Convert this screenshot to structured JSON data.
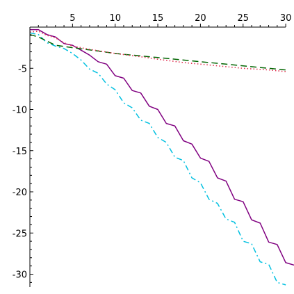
{
  "chart_data": {
    "type": "line",
    "title": "",
    "xlabel": "",
    "ylabel": "",
    "xlim": [
      0,
      30
    ],
    "ylim": [
      -31,
      0
    ],
    "grid": false,
    "x_major_ticks": [
      5,
      10,
      15,
      20,
      25,
      30
    ],
    "y_major_ticks": [
      -5,
      -10,
      -15,
      -20,
      -25,
      -30
    ],
    "x_tick_labels": [
      "5",
      "10",
      "15",
      "20",
      "25",
      "30"
    ],
    "y_tick_labels": [
      "-5",
      "-10",
      "-15",
      "-20",
      "-25",
      "-30"
    ],
    "series": [
      {
        "color": "#800080",
        "dash": "solid",
        "points": [
          [
            0,
            -0.3
          ],
          [
            1,
            -0.3
          ],
          [
            2,
            -0.9
          ],
          [
            3,
            -1.2
          ],
          [
            4,
            -2.0
          ],
          [
            5,
            -2.2
          ],
          [
            6,
            -2.8
          ],
          [
            7,
            -3.4
          ],
          [
            8,
            -4.2
          ],
          [
            9,
            -4.5
          ],
          [
            10,
            -5.9
          ],
          [
            11,
            -6.2
          ],
          [
            12,
            -7.7
          ],
          [
            13,
            -8.0
          ],
          [
            14,
            -9.6
          ],
          [
            15,
            -10.0
          ],
          [
            16,
            -11.7
          ],
          [
            17,
            -12.0
          ],
          [
            18,
            -13.8
          ],
          [
            19,
            -14.2
          ],
          [
            20,
            -15.9
          ],
          [
            21,
            -16.3
          ],
          [
            22,
            -18.3
          ],
          [
            23,
            -18.7
          ],
          [
            24,
            -20.9
          ],
          [
            25,
            -21.2
          ],
          [
            26,
            -23.4
          ],
          [
            27,
            -23.8
          ],
          [
            28,
            -26.1
          ],
          [
            29,
            -26.4
          ],
          [
            30,
            -28.6
          ],
          [
            31,
            -28.9
          ]
        ]
      },
      {
        "color": "#00c0e0",
        "dash": "dashdot",
        "points": [
          [
            0,
            -0.7
          ],
          [
            1,
            -0.9
          ],
          [
            2,
            -1.9
          ],
          [
            3,
            -2.3
          ],
          [
            4,
            -2.6
          ],
          [
            5,
            -3.2
          ],
          [
            6,
            -4.0
          ],
          [
            7,
            -5.1
          ],
          [
            8,
            -5.6
          ],
          [
            9,
            -6.9
          ],
          [
            10,
            -7.6
          ],
          [
            11,
            -9.2
          ],
          [
            12,
            -9.8
          ],
          [
            13,
            -11.3
          ],
          [
            14,
            -11.7
          ],
          [
            15,
            -13.4
          ],
          [
            16,
            -14.0
          ],
          [
            17,
            -15.8
          ],
          [
            18,
            -16.2
          ],
          [
            19,
            -18.3
          ],
          [
            20,
            -18.9
          ],
          [
            21,
            -20.9
          ],
          [
            22,
            -21.4
          ],
          [
            23,
            -23.3
          ],
          [
            24,
            -23.7
          ],
          [
            25,
            -26.0
          ],
          [
            26,
            -26.3
          ],
          [
            27,
            -28.5
          ],
          [
            28,
            -28.8
          ],
          [
            29,
            -31.0
          ],
          [
            30,
            -31.3
          ]
        ]
      },
      {
        "color": "#006400",
        "dash": "dash",
        "points": [
          [
            0,
            -0.9
          ],
          [
            1,
            -1.2
          ],
          [
            3,
            -2.2
          ],
          [
            5,
            -2.5
          ],
          [
            8,
            -2.9
          ],
          [
            10,
            -3.2
          ],
          [
            13,
            -3.5
          ],
          [
            15,
            -3.7
          ],
          [
            18,
            -4.0
          ],
          [
            20,
            -4.2
          ],
          [
            23,
            -4.5
          ],
          [
            25,
            -4.7
          ],
          [
            28,
            -5.0
          ],
          [
            30,
            -5.2
          ]
        ]
      },
      {
        "color": "#e03050",
        "dash": "dot",
        "points": [
          [
            0,
            -0.6
          ],
          [
            1,
            -0.5
          ],
          [
            2,
            -1.0
          ],
          [
            3,
            -1.3
          ],
          [
            4,
            -1.9
          ],
          [
            5,
            -2.3
          ],
          [
            7,
            -2.7
          ],
          [
            10,
            -3.2
          ],
          [
            13,
            -3.6
          ],
          [
            15,
            -3.9
          ],
          [
            18,
            -4.3
          ],
          [
            20,
            -4.5
          ],
          [
            23,
            -4.8
          ],
          [
            25,
            -5.0
          ],
          [
            28,
            -5.2
          ],
          [
            30,
            -5.4
          ]
        ]
      }
    ]
  }
}
